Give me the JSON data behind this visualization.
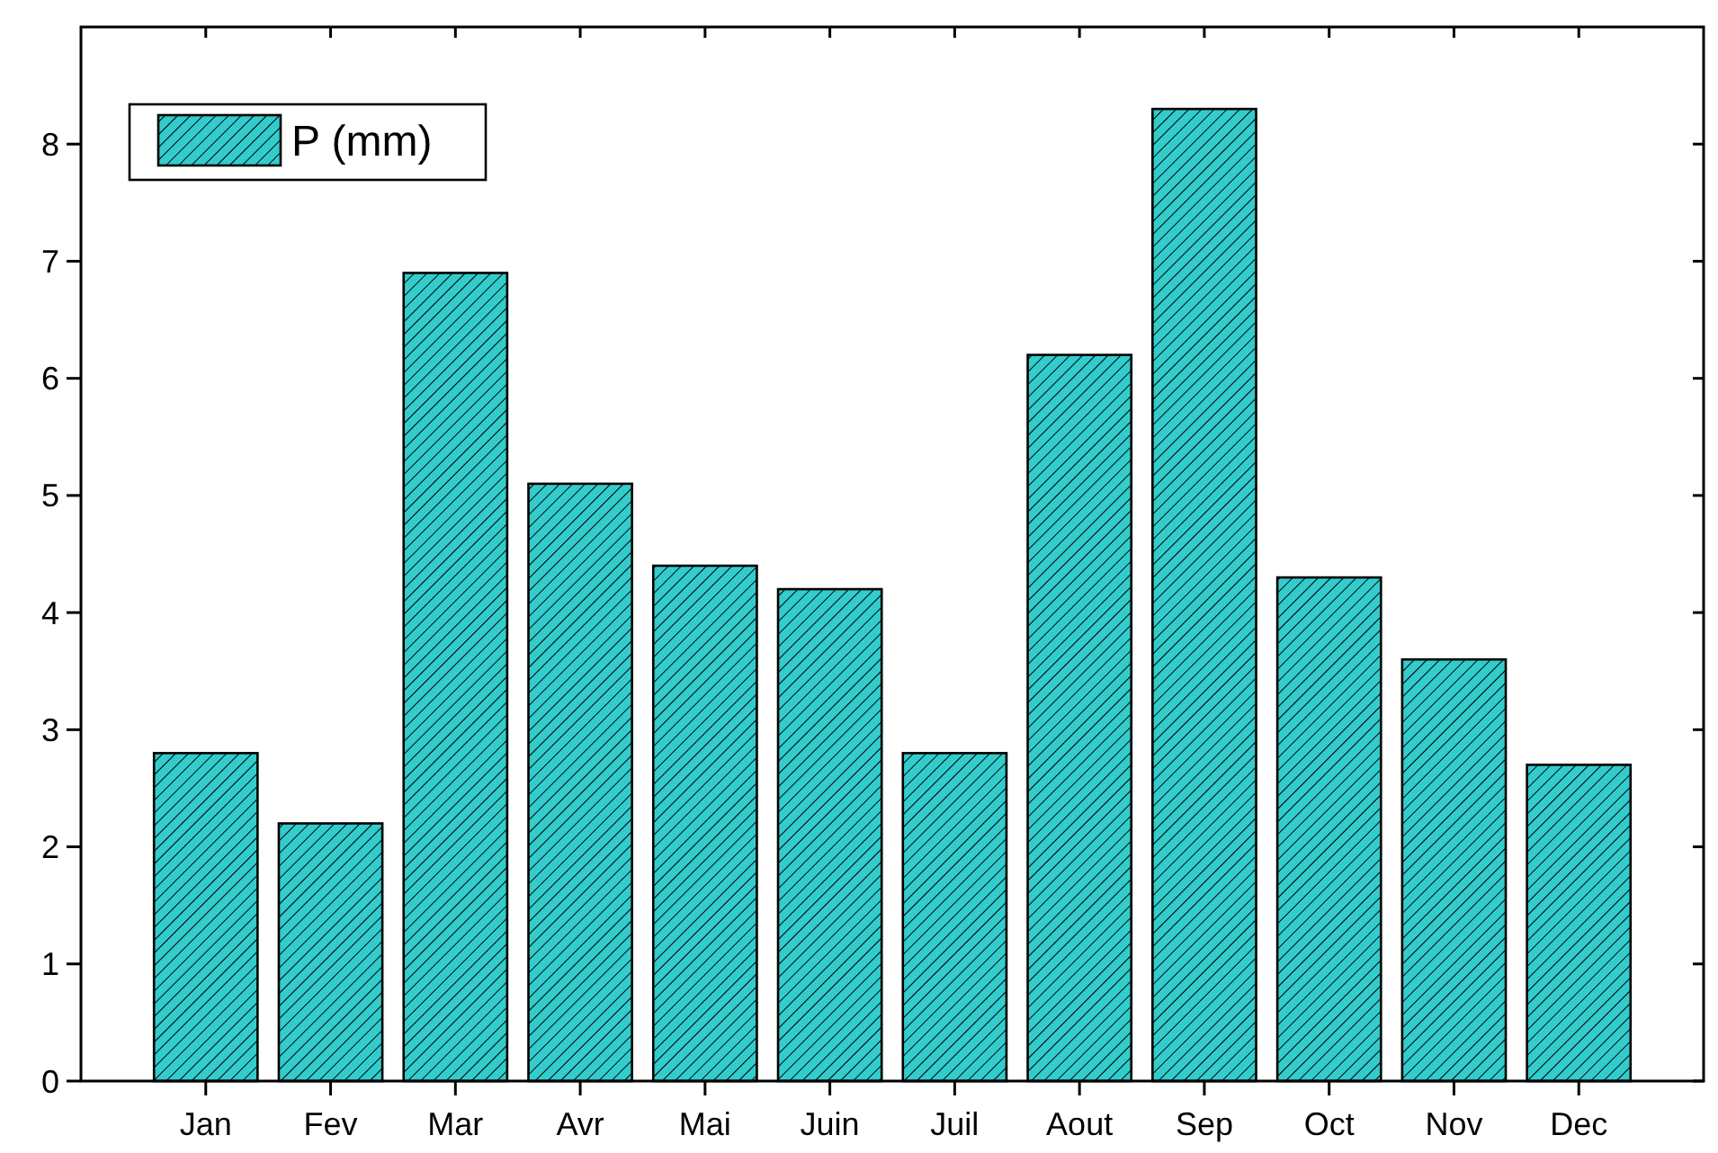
{
  "chart_data": {
    "type": "bar",
    "categories": [
      "Jan",
      "Fev",
      "Mar",
      "Avr",
      "Mai",
      "Juin",
      "Juil",
      "Aout",
      "Sep",
      "Oct",
      "Nov",
      "Dec"
    ],
    "series": [
      {
        "name": "P (mm)",
        "color": "#33cccc",
        "values": [
          2.8,
          2.2,
          6.9,
          5.1,
          4.4,
          4.2,
          2.8,
          6.2,
          8.3,
          4.3,
          3.6,
          2.7
        ]
      }
    ],
    "ylim": [
      0,
      9
    ],
    "yticks": [
      0,
      1,
      2,
      3,
      4,
      5,
      6,
      7,
      8
    ],
    "legend": "top left",
    "grid": false
  }
}
